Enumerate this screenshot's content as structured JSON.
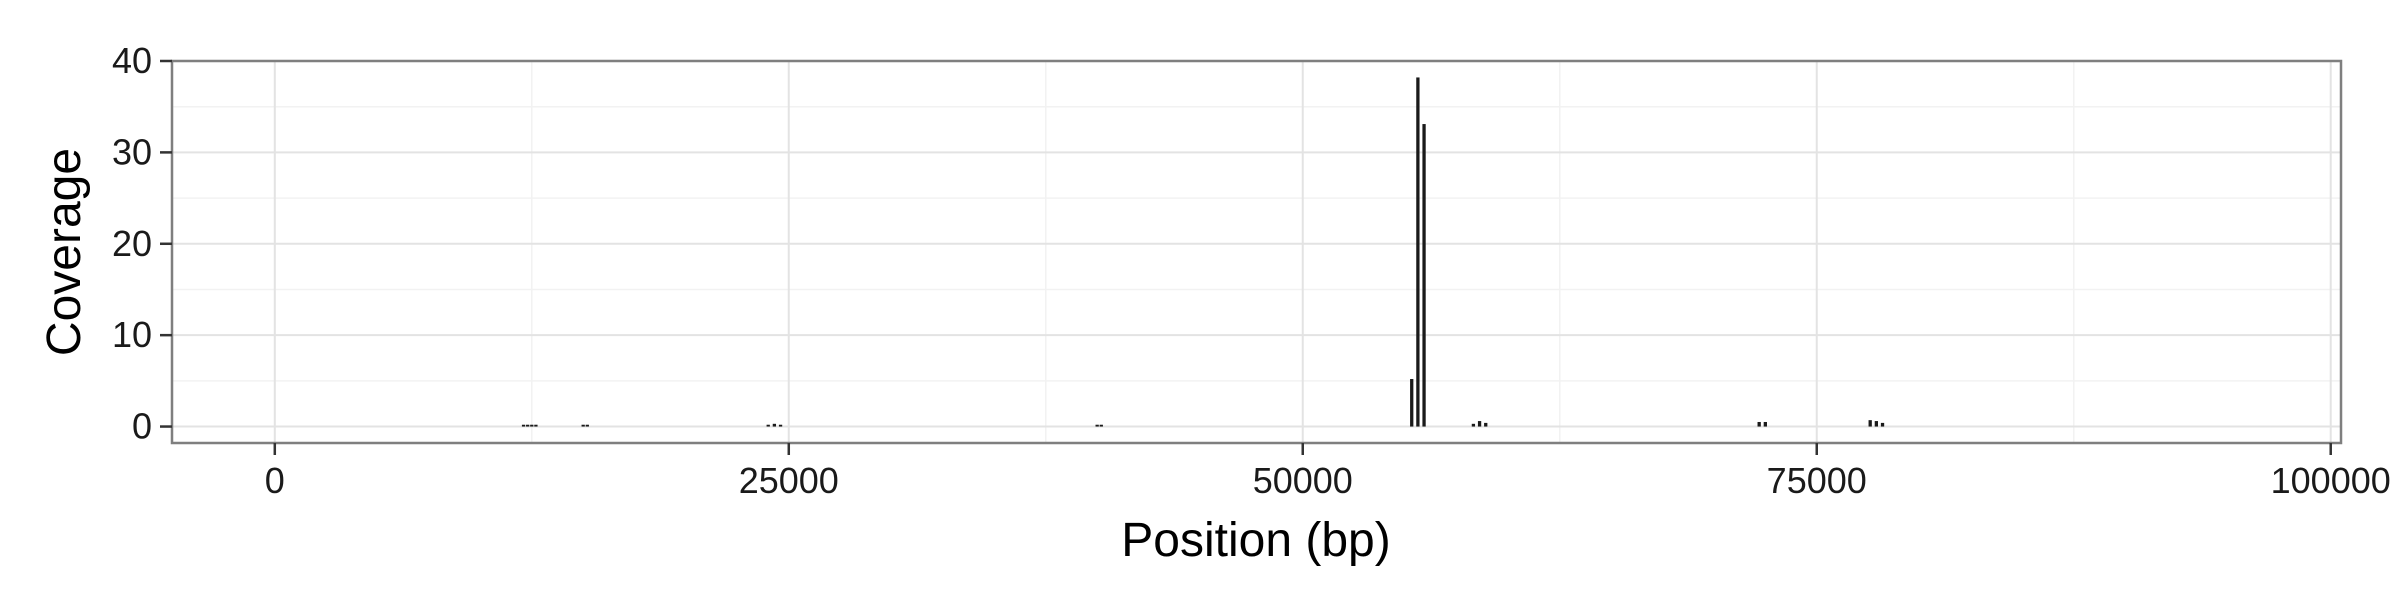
{
  "chart_data": {
    "type": "bar",
    "title": "",
    "xlabel": "Position (bp)",
    "ylabel": "Coverage",
    "xlim": [
      -5000,
      100500
    ],
    "ylim": [
      -1.8,
      40
    ],
    "xticks": [
      0,
      25000,
      50000,
      75000,
      100000
    ],
    "xtick_labels": [
      "0",
      "25000",
      "50000",
      "75000",
      "100000"
    ],
    "yticks": [
      0,
      10,
      20,
      30,
      40
    ],
    "ytick_labels": [
      "0",
      "10",
      "20",
      "30",
      "40"
    ],
    "grid": true,
    "legend": "none",
    "bar_color": "#1a1a1a",
    "bin_width": 160,
    "x": [
      12100,
      12300,
      12500,
      12700,
      15000,
      15200,
      24000,
      24300,
      24600,
      40000,
      40200,
      55300,
      55600,
      55900,
      58300,
      58600,
      58900,
      72200,
      72500,
      77600,
      77900,
      78200
    ],
    "values": [
      0.2,
      0.2,
      0.2,
      0.2,
      0.2,
      0.2,
      0.2,
      0.3,
      0.2,
      0.2,
      0.2,
      5.2,
      38.2,
      33.1,
      0.3,
      0.6,
      0.4,
      0.5,
      0.5,
      0.7,
      0.6,
      0.4
    ]
  }
}
